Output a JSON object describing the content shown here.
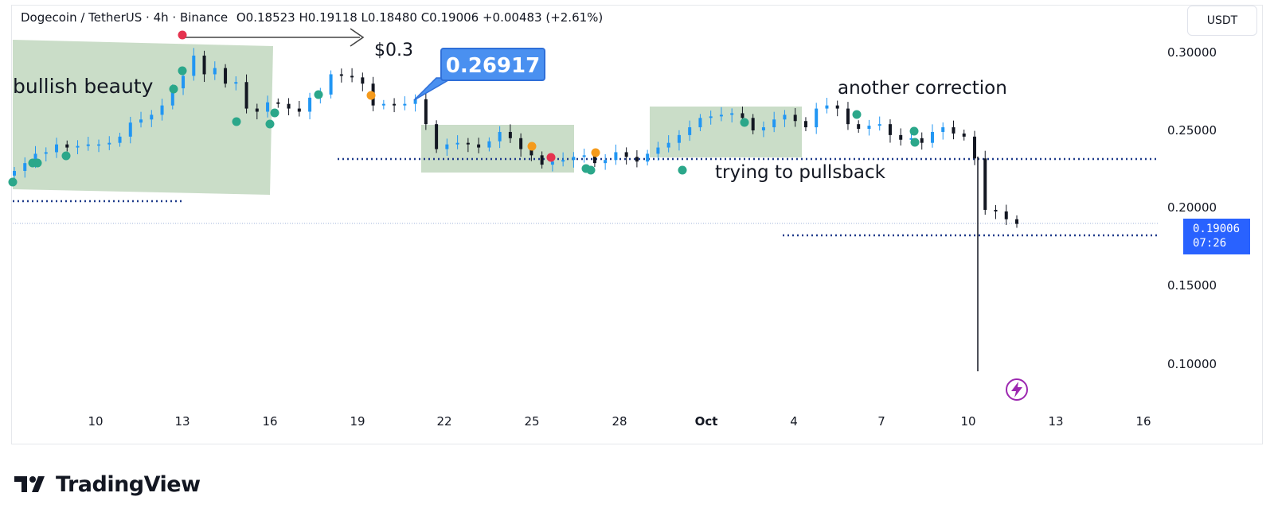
{
  "header": {
    "symbol": "Dogecoin / TetherUS · 4h · Binance",
    "ohlc": "O0.18523  H0.19118  L0.18480  C0.19006  +0.00483 (+2.61%)"
  },
  "currency_button": "USDT",
  "brand": {
    "name": "TradingView"
  },
  "current_price": {
    "value": "0.19006",
    "countdown": "07:26"
  },
  "colors": {
    "up": "#2196f3",
    "down": "#131722",
    "zone": "#b8d1b6",
    "dotted_line": "#1e3a8a",
    "accent": "#2962ff",
    "callout": "#4a90f0"
  },
  "annotations": {
    "bullish": "bullish beauty",
    "target": "$0.3",
    "callout": "0.26917",
    "correction": "another correction",
    "pullback": "trying to pullsback"
  },
  "chart_data": {
    "type": "candlestick",
    "y_ticks": [
      "0.30000",
      "0.25000",
      "0.20000",
      "0.15000",
      "0.10000"
    ],
    "y_tick_values": [
      0.3,
      0.25,
      0.2,
      0.15,
      0.1
    ],
    "x_ticks": [
      "10",
      "13",
      "16",
      "19",
      "22",
      "25",
      "28",
      "Oct",
      "4",
      "7",
      "10",
      "13",
      "16"
    ],
    "ylim": [
      0.075,
      0.32
    ],
    "close_series": [
      0.224,
      0.229,
      0.235,
      0.236,
      0.241,
      0.239,
      0.24,
      0.241,
      0.241,
      0.242,
      0.246,
      0.255,
      0.257,
      0.26,
      0.266,
      0.277,
      0.285,
      0.298,
      0.286,
      0.29,
      0.28,
      0.281,
      0.264,
      0.262,
      0.268,
      0.267,
      0.264,
      0.262,
      0.271,
      0.273,
      0.286,
      0.285,
      0.284,
      0.28,
      0.266,
      0.267,
      0.266,
      0.267,
      0.27,
      0.254,
      0.238,
      0.241,
      0.242,
      0.241,
      0.239,
      0.243,
      0.249,
      0.245,
      0.238,
      0.234,
      0.228,
      0.23,
      0.231,
      0.233,
      0.234,
      0.229,
      0.231,
      0.236,
      0.233,
      0.23,
      0.235,
      0.239,
      0.242,
      0.247,
      0.252,
      0.258,
      0.259,
      0.26,
      0.261,
      0.258,
      0.25,
      0.252,
      0.257,
      0.26,
      0.256,
      0.252,
      0.264,
      0.266,
      0.264,
      0.254,
      0.251,
      0.253,
      0.254,
      0.247,
      0.244,
      0.245,
      0.242,
      0.249,
      0.252,
      0.248,
      0.246,
      0.232,
      0.199,
      0.198,
      0.193,
      0.19
    ]
  }
}
